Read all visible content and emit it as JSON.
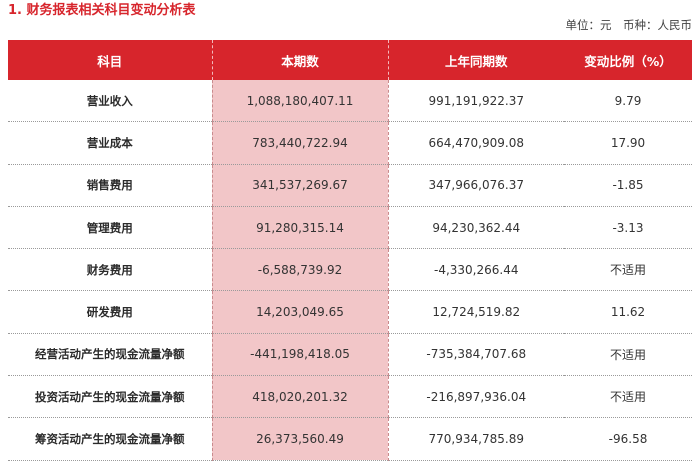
{
  "title": "1. 财务报表相关科目变动分析表",
  "unit_note": "单位：元　币种：人民币",
  "headers": [
    "科目",
    "本期数",
    "上年同期数",
    "变动比例（%）"
  ],
  "rows": [
    {
      "item": "营业收入",
      "current": "1,088,180,407.11",
      "prior": "991,191,922.37",
      "change": "9.79"
    },
    {
      "item": "营业成本",
      "current": "783,440,722.94",
      "prior": "664,470,909.08",
      "change": "17.90"
    },
    {
      "item": "销售费用",
      "current": "341,537,269.67",
      "prior": "347,966,076.37",
      "change": "-1.85"
    },
    {
      "item": "管理费用",
      "current": "91,280,315.14",
      "prior": "94,230,362.44",
      "change": "-3.13"
    },
    {
      "item": "财务费用",
      "current": "-6,588,739.92",
      "prior": "-4,330,266.44",
      "change": "不适用"
    },
    {
      "item": "研发费用",
      "current": "14,203,049.65",
      "prior": "12,724,519.82",
      "change": "11.62"
    },
    {
      "item": "经营活动产生的现金流量净额",
      "current": "-441,198,418.05",
      "prior": "-735,384,707.68",
      "change": "不适用"
    },
    {
      "item": "投资活动产生的现金流量净额",
      "current": "418,020,201.32",
      "prior": "-216,897,936.04",
      "change": "不适用"
    },
    {
      "item": "筹资活动产生的现金流量净额",
      "current": "26,373,560.49",
      "prior": "770,934,785.89",
      "change": "-96.58"
    }
  ]
}
